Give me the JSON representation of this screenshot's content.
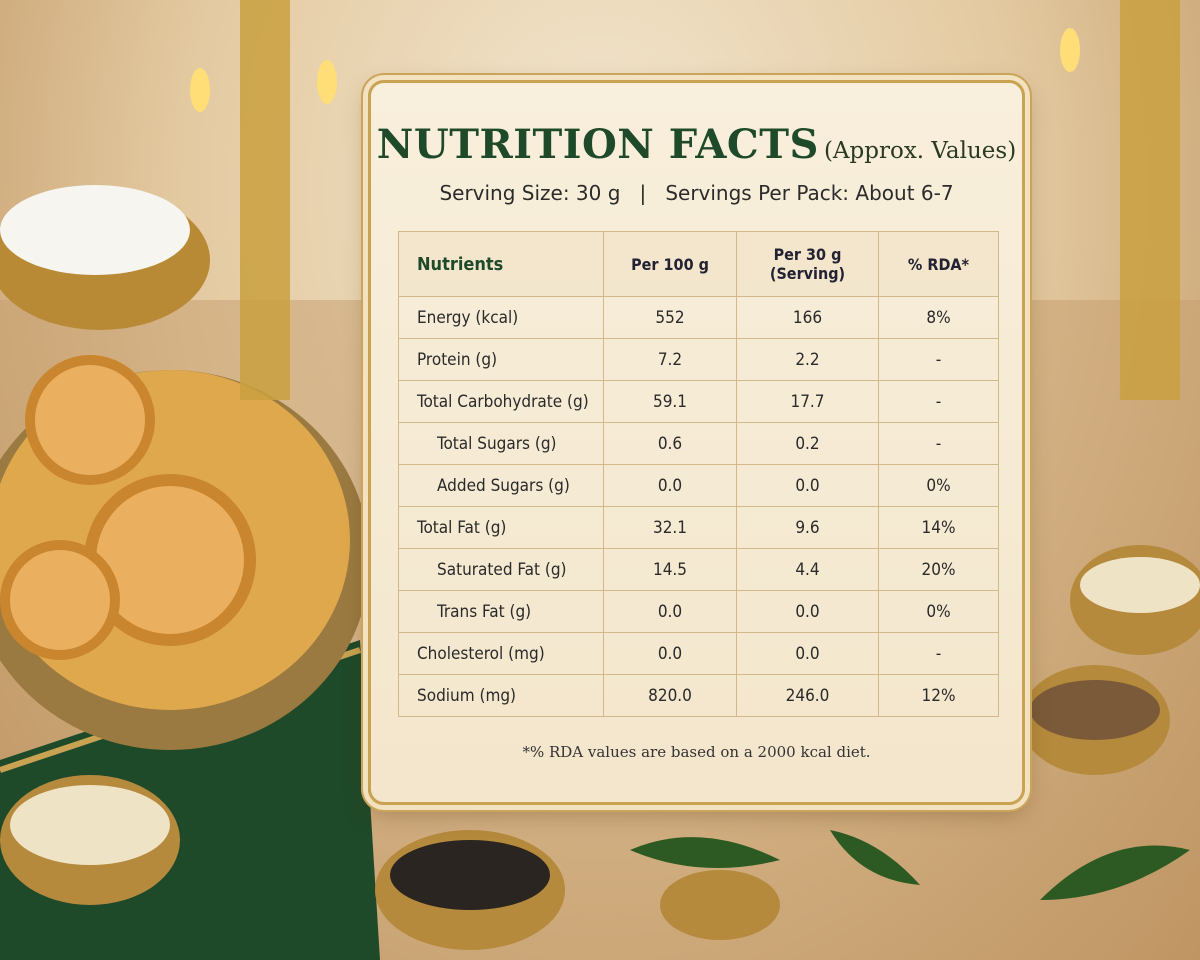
{
  "card": {
    "title": "NUTRITION FACTS",
    "title_note": "(Approx. Values)",
    "serving": "Serving Size: 30 g   |   Servings Per Pack: About 6-7",
    "table": {
      "header": [
        [
          "Nutrients"
        ],
        [
          "Per 100 g"
        ],
        [
          "Per 30 g",
          "(Serving)"
        ],
        [
          "% RDA*"
        ]
      ],
      "rows": [
        [
          "Energy (kcal)",
          "552",
          "166",
          "8%"
        ],
        [
          "Protein (g)",
          "7.2",
          "2.2",
          "-"
        ],
        [
          "Total Carbohydrate (g)",
          "59.1",
          "17.7",
          "-"
        ],
        [
          "Total Sugars (g)",
          "0.6",
          "0.2",
          "-"
        ],
        [
          "Added Sugars (g)",
          "0.0",
          "0.0",
          "0%"
        ],
        [
          "Total Fat (g)",
          "32.1",
          "9.6",
          "14%"
        ],
        [
          "Saturated Fat (g)",
          "14.5",
          "4.4",
          "20%"
        ],
        [
          "Trans Fat (g)",
          "0.0",
          "0.0",
          "0%"
        ],
        [
          "Cholesterol (mg)",
          "0.0",
          "0.0",
          "-"
        ],
        [
          "Sodium (mg)",
          "820.0",
          "246.0",
          "12%"
        ]
      ]
    },
    "footnote": "*% RDA values are based on a 2000 kcal diet."
  }
}
